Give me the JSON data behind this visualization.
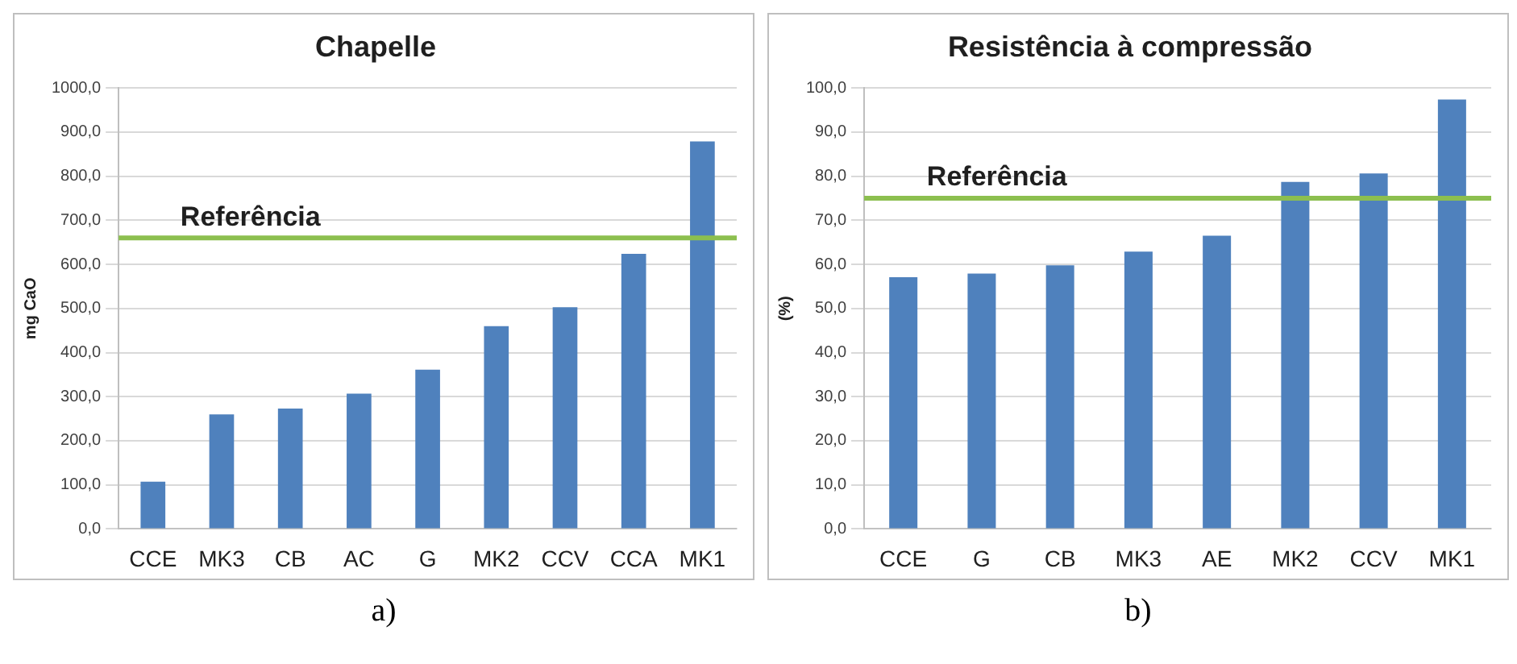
{
  "chart_data": [
    {
      "type": "bar",
      "title": "Chapelle",
      "ylabel": "mg CaO",
      "categories": [
        "CCE",
        "MK3",
        "CB",
        "AC",
        "G",
        "MK2",
        "CCV",
        "CCA",
        "MK1"
      ],
      "values": [
        107,
        260,
        273,
        307,
        361,
        460,
        503,
        624,
        879
      ],
      "color": "#4f81bd",
      "ylim": [
        0,
        1000
      ],
      "yticks": [
        {
          "value": 0,
          "label": "0,0"
        },
        {
          "value": 100,
          "label": "100,0"
        },
        {
          "value": 200,
          "label": "200,0"
        },
        {
          "value": 300,
          "label": "300,0"
        },
        {
          "value": 400,
          "label": "400,0"
        },
        {
          "value": 500,
          "label": "500,0"
        },
        {
          "value": 600,
          "label": "600,0"
        },
        {
          "value": 700,
          "label": "700,0"
        },
        {
          "value": 800,
          "label": "800,0"
        },
        {
          "value": 900,
          "label": "900,0"
        },
        {
          "value": 1000,
          "label": "1000,0"
        }
      ],
      "grid": "y",
      "legend": false,
      "ref_lines": [
        {
          "axis": "y",
          "value": 660,
          "label": "Referência",
          "color": "#8cbf4f"
        }
      ],
      "annotations": [
        "a)"
      ]
    },
    {
      "type": "bar",
      "title": "Resistência à compressão",
      "ylabel": "(%)",
      "categories": [
        "CCE",
        "G",
        "CB",
        "MK3",
        "AE",
        "MK2",
        "CCV",
        "MK1"
      ],
      "values": [
        57.1,
        57.9,
        59.8,
        62.9,
        66.5,
        78.7,
        80.6,
        97.4
      ],
      "color": "#4f81bd",
      "ylim": [
        0,
        100
      ],
      "yticks": [
        {
          "value": 0,
          "label": "0,0"
        },
        {
          "value": 10,
          "label": "10,0"
        },
        {
          "value": 20,
          "label": "20,0"
        },
        {
          "value": 30,
          "label": "30,0"
        },
        {
          "value": 40,
          "label": "40,0"
        },
        {
          "value": 50,
          "label": "50,0"
        },
        {
          "value": 60,
          "label": "60,0"
        },
        {
          "value": 70,
          "label": "70,0"
        },
        {
          "value": 80,
          "label": "80,0"
        },
        {
          "value": 90,
          "label": "90,0"
        },
        {
          "value": 100,
          "label": "100,0"
        }
      ],
      "grid": "y",
      "legend": false,
      "ref_lines": [
        {
          "axis": "y",
          "value": 75,
          "label": "Referência",
          "color": "#8cbf4f"
        }
      ],
      "annotations": [
        "b)"
      ]
    }
  ]
}
